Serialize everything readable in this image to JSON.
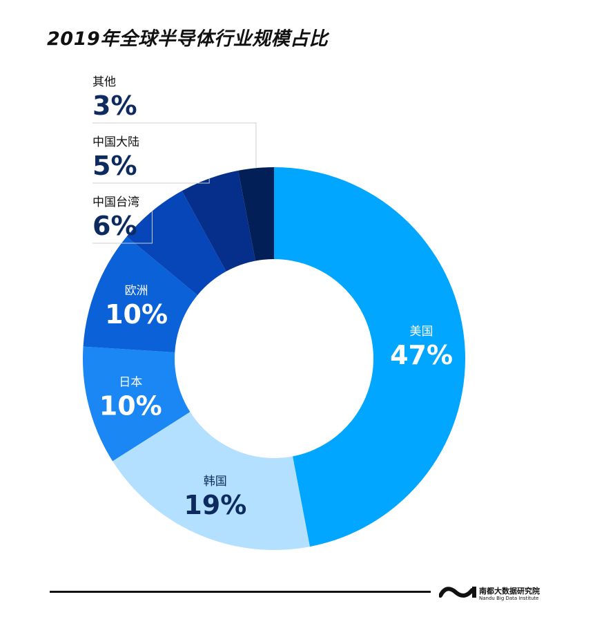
{
  "chart_data": {
    "type": "pie",
    "variant": "donut",
    "title": "2019年全球半导体行业规模占比",
    "slices": [
      {
        "label": "美国",
        "display": "47%",
        "value": 47,
        "color": "#00a6ff",
        "text_color": "#ffffff"
      },
      {
        "label": "韩国",
        "display": "19%",
        "value": 19,
        "color": "#b3e0ff",
        "text_color": "#0d2b5e"
      },
      {
        "label": "日本",
        "display": "10%",
        "value": 10,
        "color": "#1a87f5",
        "text_color": "#ffffff"
      },
      {
        "label": "欧洲",
        "display": "10%",
        "value": 10,
        "color": "#0b61d8",
        "text_color": "#ffffff"
      },
      {
        "label": "中国台湾",
        "display": "6%",
        "value": 6,
        "color": "#0646b8",
        "text_color": "#0d2b5e"
      },
      {
        "label": "中国大陆",
        "display": "5%",
        "value": 5,
        "color": "#052f8a",
        "text_color": "#0d2b5e"
      },
      {
        "label": "其他",
        "display": "3%",
        "value": 3,
        "color": "#031f57",
        "text_color": "#0d2b5e"
      }
    ]
  },
  "brand": {
    "name_cn": "南都大数据研究院",
    "name_en": "Nandu Big Data Institute"
  }
}
